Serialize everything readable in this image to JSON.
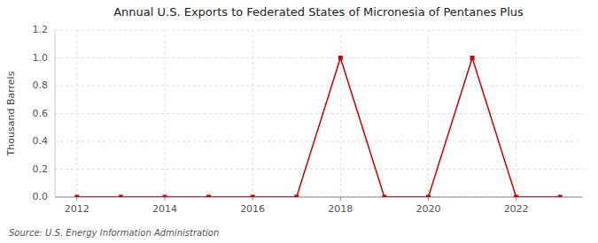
{
  "chart_data": {
    "type": "line",
    "title": "Annual U.S. Exports to Federated States of Micronesia of Pentanes Plus",
    "y_label": "Thousand Barrels",
    "source": "Source: U.S. Energy Information Administration",
    "x": [
      2012,
      2013,
      2014,
      2015,
      2016,
      2017,
      2018,
      2019,
      2020,
      2021,
      2022,
      2023
    ],
    "values": [
      0,
      0,
      0,
      0,
      0,
      0,
      1,
      0,
      0,
      1,
      0,
      0
    ],
    "color": "#cc0000",
    "marker": "square",
    "line_style": "solid",
    "xlim": [
      2011.5,
      2023.5
    ],
    "ylim": [
      0,
      1.2
    ],
    "xticks": [
      2012,
      2014,
      2016,
      2018,
      2020,
      2022
    ],
    "yticks": [
      {
        "value": 0,
        "label": "0.0"
      },
      0.2,
      0.4,
      0.6,
      0.8,
      {
        "value": 1,
        "label": "1.0"
      },
      1.2
    ],
    "grid": true
  }
}
